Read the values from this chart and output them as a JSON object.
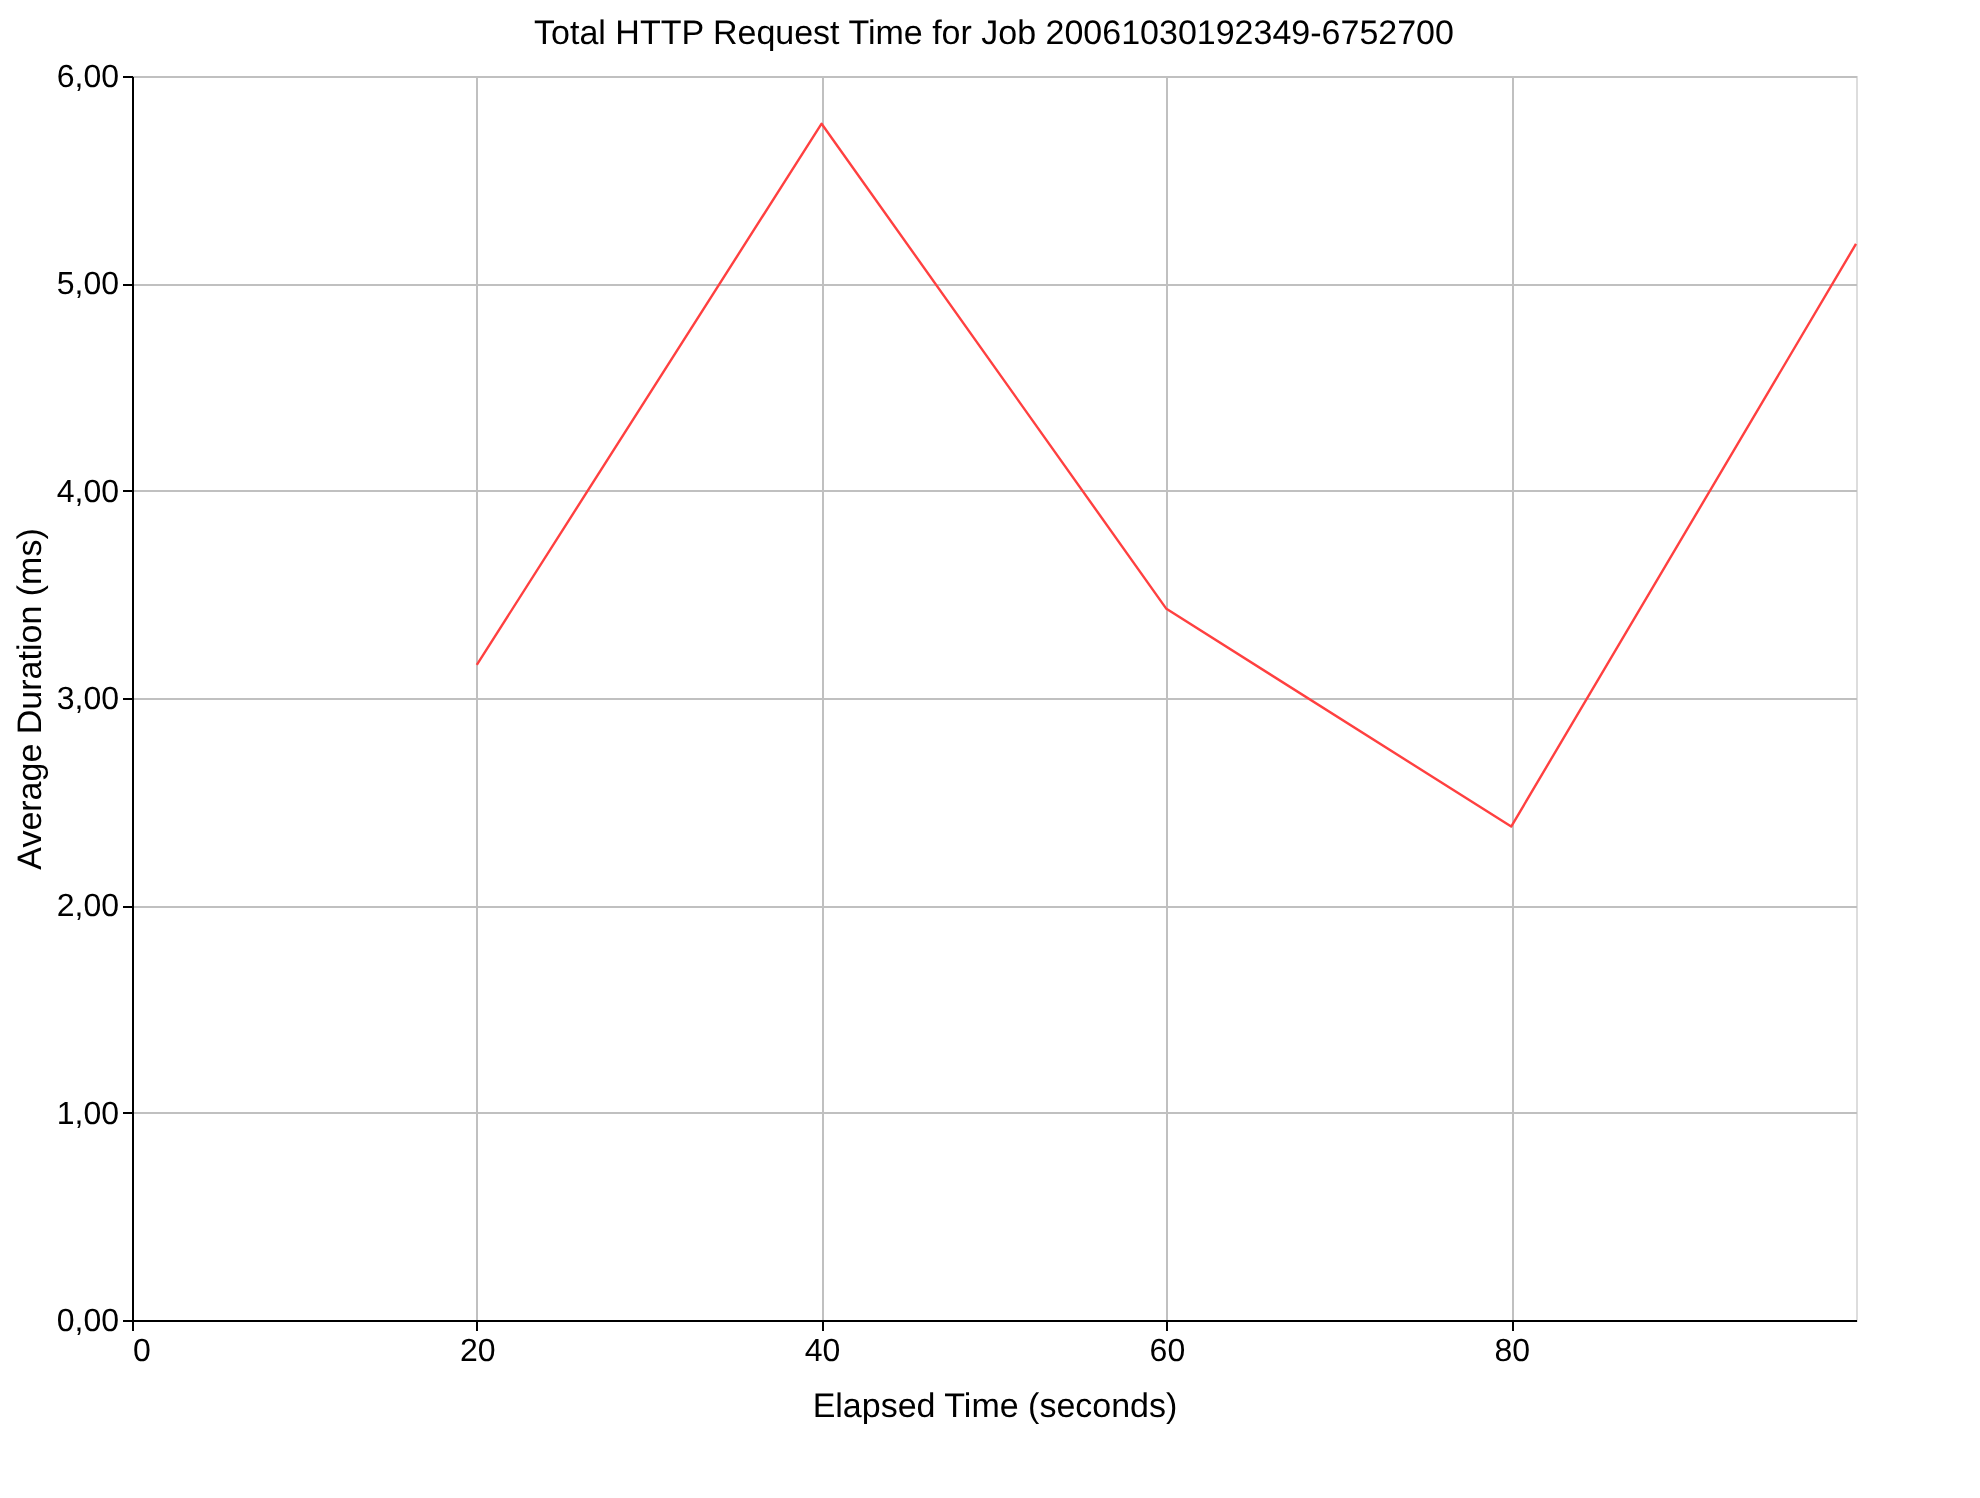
{
  "chart_data": {
    "type": "line",
    "title": "Total HTTP Request Time for Job 20061030192349-6752700",
    "xlabel": "Elapsed Time (seconds)",
    "ylabel": "Average Duration (ms)",
    "x": [
      20,
      40,
      60,
      80,
      100
    ],
    "series": [
      {
        "color": "#ff4040",
        "values": [
          3.16,
          5.77,
          3.43,
          2.38,
          5.19
        ]
      }
    ],
    "xlim": [
      0,
      100
    ],
    "xticks": [
      0,
      20,
      40,
      60,
      80
    ],
    "ylim": [
      0,
      6
    ],
    "yticks": [
      {
        "value": 0,
        "label": "0,00"
      },
      {
        "value": 1,
        "label": "1,00"
      },
      {
        "value": 2,
        "label": "2,00"
      },
      {
        "value": 3,
        "label": "3,00"
      },
      {
        "value": 4,
        "label": "4,00"
      },
      {
        "value": 5,
        "label": "5,00"
      },
      {
        "value": 6,
        "label": "6,00"
      }
    ],
    "grid": true,
    "legend": false,
    "marker": "none",
    "line_style": "solid"
  }
}
